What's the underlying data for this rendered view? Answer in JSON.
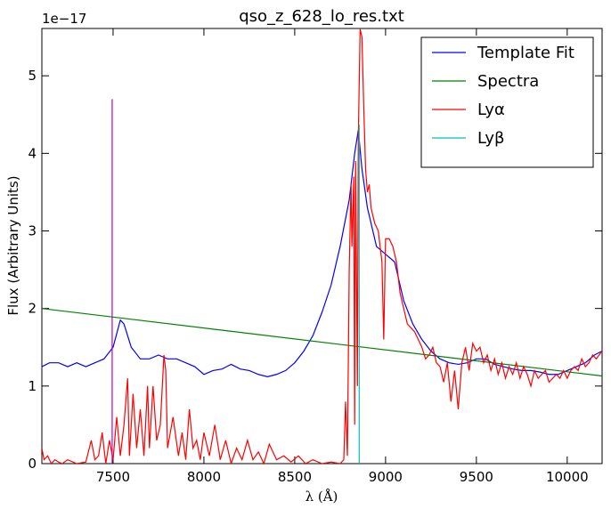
{
  "chart_data": {
    "type": "line",
    "title": "qso_z_628_lo_res.txt",
    "xlabel": "λ (Å)",
    "ylabel": "Flux (Arbitrary Units)",
    "y_offset_label": "1e−17",
    "xlim": [
      7108,
      10192
    ],
    "ylim": [
      0,
      5.61
    ],
    "xticks": [
      7500,
      8000,
      8500,
      9000,
      9500,
      10000
    ],
    "yticks": [
      0,
      1,
      2,
      3,
      4,
      5
    ],
    "grid": false,
    "legend": "upper right",
    "series": [
      {
        "name": "Template Fit",
        "color": "#0000ff",
        "x": [
          7108,
          7150,
          7200,
          7250,
          7300,
          7350,
          7400,
          7450,
          7500,
          7540,
          7560,
          7600,
          7650,
          7700,
          7750,
          7800,
          7850,
          7900,
          7950,
          8000,
          8050,
          8100,
          8150,
          8200,
          8250,
          8300,
          8350,
          8400,
          8450,
          8500,
          8550,
          8600,
          8650,
          8700,
          8750,
          8800,
          8830,
          8850,
          8870,
          8900,
          8950,
          9000,
          9050,
          9100,
          9150,
          9200,
          9250,
          9300,
          9350,
          9400,
          9450,
          9500,
          9550,
          9600,
          9650,
          9700,
          9750,
          9800,
          9850,
          9900,
          9950,
          10000,
          10050,
          10100,
          10150,
          10191
        ],
        "values": [
          1.25,
          1.3,
          1.3,
          1.25,
          1.3,
          1.25,
          1.3,
          1.35,
          1.5,
          1.85,
          1.8,
          1.5,
          1.35,
          1.35,
          1.4,
          1.35,
          1.35,
          1.3,
          1.25,
          1.15,
          1.2,
          1.22,
          1.28,
          1.22,
          1.2,
          1.15,
          1.12,
          1.15,
          1.2,
          1.3,
          1.45,
          1.65,
          1.95,
          2.3,
          2.8,
          3.4,
          4.0,
          4.3,
          3.8,
          3.3,
          2.8,
          2.7,
          2.6,
          2.1,
          1.8,
          1.6,
          1.45,
          1.35,
          1.3,
          1.28,
          1.3,
          1.35,
          1.35,
          1.28,
          1.25,
          1.22,
          1.2,
          1.2,
          1.18,
          1.15,
          1.15,
          1.2,
          1.25,
          1.3,
          1.4,
          1.45
        ]
      },
      {
        "name": "Spectra",
        "color": "#008000",
        "x": [
          7108,
          10191
        ],
        "values": [
          2.0,
          1.13
        ]
      },
      {
        "name": "Lyα",
        "color": "#ff0000",
        "x": [
          7108,
          7120,
          7140,
          7160,
          7180,
          7200,
          7220,
          7250,
          7300,
          7350,
          7380,
          7400,
          7420,
          7440,
          7460,
          7480,
          7500,
          7520,
          7540,
          7560,
          7580,
          7590,
          7610,
          7630,
          7650,
          7670,
          7690,
          7700,
          7720,
          7740,
          7760,
          7780,
          7790,
          7800,
          7830,
          7860,
          7880,
          7900,
          7920,
          7940,
          7960,
          7980,
          8000,
          8030,
          8060,
          8090,
          8120,
          8150,
          8180,
          8210,
          8240,
          8270,
          8300,
          8330,
          8360,
          8400,
          8440,
          8480,
          8520,
          8560,
          8600,
          8650,
          8700,
          8750,
          8770,
          8780,
          8790,
          8800,
          8810,
          8815,
          8825,
          8830,
          8835,
          8845,
          8850,
          8860,
          8870,
          8880,
          8890,
          8900,
          8910,
          8920,
          8940,
          8960,
          8980,
          8990,
          9000,
          9020,
          9040,
          9060,
          9080,
          9100,
          9120,
          9140,
          9160,
          9180,
          9200,
          9220,
          9240,
          9260,
          9280,
          9300,
          9320,
          9340,
          9360,
          9380,
          9400,
          9420,
          9440,
          9460,
          9480,
          9500,
          9520,
          9540,
          9560,
          9580,
          9600,
          9620,
          9640,
          9660,
          9680,
          9700,
          9720,
          9740,
          9760,
          9780,
          9800,
          9820,
          9840,
          9860,
          9880,
          9900,
          9920,
          9940,
          9960,
          9980,
          10000,
          10020,
          10040,
          10060,
          10080,
          10100,
          10120,
          10140,
          10160,
          10191
        ],
        "values": [
          0.2,
          0.05,
          0.1,
          0.0,
          0.05,
          0.02,
          0.0,
          0.05,
          0.0,
          0.02,
          0.3,
          0.05,
          0.1,
          0.4,
          0.0,
          0.3,
          0.05,
          0.6,
          0.1,
          0.5,
          1.1,
          0.1,
          0.9,
          0.2,
          0.7,
          0.1,
          1.0,
          0.2,
          1.0,
          0.3,
          0.5,
          1.4,
          1.2,
          0.2,
          0.6,
          0.1,
          0.4,
          0.05,
          0.7,
          0.2,
          0.3,
          0.05,
          0.4,
          0.1,
          0.5,
          0.05,
          0.3,
          0.0,
          0.2,
          0.05,
          0.3,
          0.05,
          0.15,
          0.0,
          0.25,
          0.05,
          0.1,
          0.02,
          0.1,
          0.0,
          0.05,
          0.0,
          0.02,
          0.0,
          0.05,
          0.8,
          0.1,
          2.5,
          3.6,
          2.8,
          3.7,
          0.5,
          3.9,
          1.0,
          4.2,
          5.6,
          5.5,
          4.6,
          3.8,
          3.5,
          3.6,
          3.3,
          3.1,
          3.0,
          2.6,
          1.6,
          2.9,
          2.9,
          2.8,
          2.6,
          2.2,
          2.0,
          1.8,
          1.75,
          1.7,
          1.6,
          1.5,
          1.35,
          1.4,
          1.5,
          1.3,
          1.25,
          1.05,
          1.3,
          0.8,
          1.2,
          0.7,
          1.3,
          1.5,
          1.2,
          1.55,
          1.45,
          1.5,
          1.3,
          1.4,
          1.2,
          1.35,
          1.15,
          1.3,
          1.1,
          1.25,
          1.15,
          1.3,
          1.1,
          1.25,
          1.15,
          1.0,
          1.2,
          1.1,
          1.15,
          1.2,
          1.05,
          1.1,
          1.15,
          1.1,
          1.2,
          1.1,
          1.2,
          1.25,
          1.2,
          1.35,
          1.25,
          1.3,
          1.4,
          1.35,
          1.45
        ]
      },
      {
        "name": "Lyβ",
        "color": "#00bfbf",
        "x": [
          8855,
          8855
        ],
        "values": [
          0,
          4.37
        ]
      },
      {
        "color": "#bf00bf",
        "x": [
          7495,
          7495
        ],
        "values": [
          0,
          4.7
        ]
      }
    ]
  }
}
